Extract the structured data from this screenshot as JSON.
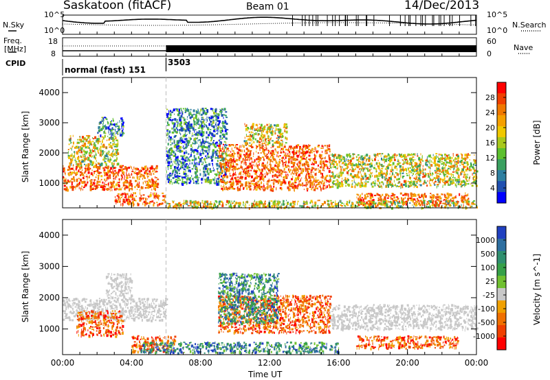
{
  "header": {
    "site": "Saskatoon (fitACF)",
    "beam": "Beam 01",
    "date": "14/Dec/2013"
  },
  "summary": {
    "nsky_label": "N.Sky",
    "nsearch_label": "N.Search",
    "freq_label_1": "Freq.",
    "freq_label_2": "[MHz]",
    "nave_label": "Nave",
    "cpid_label": "CPID",
    "nsky_ticks": [
      "10^5",
      "10^0"
    ],
    "nsearch_ticks": [
      "10^5",
      "10^0"
    ],
    "freq_ticks": [
      "18",
      "8"
    ],
    "nave_ticks": [
      "60",
      "0"
    ]
  },
  "cpid": {
    "segments": [
      {
        "label": "normal (fast) 151",
        "start": "00:00",
        "end": "06:00"
      },
      {
        "label": "3503",
        "start": "06:00",
        "end": "24:00"
      }
    ]
  },
  "axes": {
    "x_ticks": [
      "00:00",
      "04:00",
      "08:00",
      "12:00",
      "16:00",
      "20:00",
      "00:00"
    ],
    "x_label": "Time UT",
    "y_label": "Slant Range [km]",
    "y_ticks": [
      "4000",
      "3000",
      "2000",
      "1000"
    ]
  },
  "chart_data": [
    {
      "type": "heatmap",
      "name": "power",
      "title": "",
      "xlabel": "Time UT",
      "ylabel": "Slant Range [km]",
      "xlim": [
        0,
        24
      ],
      "ylim": [
        180,
        4500
      ],
      "colorbar": {
        "label": "Power [dB]",
        "ticks": [
          "28",
          "24",
          "20",
          "16",
          "12",
          "8",
          "4"
        ],
        "tick_values": [
          28,
          24,
          20,
          16,
          12,
          8,
          4
        ],
        "range": [
          0,
          32
        ],
        "colors": [
          "#0000ff",
          "#1f4fb0",
          "#2e7fa0",
          "#3aa060",
          "#5cc02e",
          "#a8c81c",
          "#f0c800",
          "#f5a000",
          "#f07800",
          "#f04000",
          "#ff0000"
        ]
      },
      "regions": [
        {
          "t0": 0.0,
          "t1": 5.5,
          "r0": 800,
          "r1": 1600,
          "level": "high"
        },
        {
          "t0": 0.3,
          "t1": 3.2,
          "r0": 1600,
          "r1": 2600,
          "level": "mid"
        },
        {
          "t0": 2.0,
          "t1": 3.5,
          "r0": 2600,
          "r1": 3200,
          "level": "low"
        },
        {
          "t0": 3.0,
          "t1": 6.0,
          "r0": 300,
          "r1": 700,
          "level": "high"
        },
        {
          "t0": 6.0,
          "t1": 9.5,
          "r0": 1000,
          "r1": 3500,
          "level": "low"
        },
        {
          "t0": 9.0,
          "t1": 15.5,
          "r0": 800,
          "r1": 2300,
          "level": "high"
        },
        {
          "t0": 10.5,
          "t1": 13.0,
          "r0": 2300,
          "r1": 3000,
          "level": "mid"
        },
        {
          "t0": 15.5,
          "t1": 24.0,
          "r0": 900,
          "r1": 2000,
          "level": "mid"
        },
        {
          "t0": 17.0,
          "t1": 23.5,
          "r0": 300,
          "r1": 700,
          "level": "high"
        },
        {
          "t0": 6.0,
          "t1": 24.0,
          "r0": 200,
          "r1": 450,
          "level": "mid"
        }
      ]
    },
    {
      "type": "heatmap",
      "name": "velocity",
      "title": "",
      "xlabel": "Time UT",
      "ylabel": "Slant Range [km]",
      "xlim": [
        0,
        24
      ],
      "ylim": [
        180,
        4500
      ],
      "colorbar": {
        "label": "Velocity [m s^-1]",
        "ticks": [
          "1000",
          "500",
          "100",
          "25",
          "-25",
          "-100",
          "-500",
          "-1000"
        ],
        "colors": [
          "#2040c0",
          "#2e6fa0",
          "#2f8f6f",
          "#36a048",
          "#70c030",
          "#c8c8c8",
          "#f0a000",
          "#f07000",
          "#f04000",
          "#ff0000"
        ]
      },
      "regions": [
        {
          "t0": 0.0,
          "t1": 6.0,
          "r0": 1300,
          "r1": 2000,
          "level": "ground"
        },
        {
          "t0": 0.8,
          "t1": 3.5,
          "r0": 800,
          "r1": 1600,
          "level": "away"
        },
        {
          "t0": 2.5,
          "t1": 4.0,
          "r0": 2000,
          "r1": 2800,
          "level": "ground"
        },
        {
          "t0": 4.0,
          "t1": 6.5,
          "r0": 300,
          "r1": 800,
          "level": "away"
        },
        {
          "t0": 4.5,
          "t1": 16.0,
          "r0": 250,
          "r1": 600,
          "level": "toward"
        },
        {
          "t0": 9.0,
          "t1": 15.5,
          "r0": 900,
          "r1": 2100,
          "level": "away"
        },
        {
          "t0": 9.0,
          "t1": 12.5,
          "r0": 1200,
          "r1": 2800,
          "level": "toward"
        },
        {
          "t0": 15.5,
          "t1": 24.0,
          "r0": 1000,
          "r1": 1800,
          "level": "ground"
        },
        {
          "t0": 17.0,
          "t1": 23.0,
          "r0": 400,
          "r1": 800,
          "level": "away"
        }
      ]
    }
  ]
}
